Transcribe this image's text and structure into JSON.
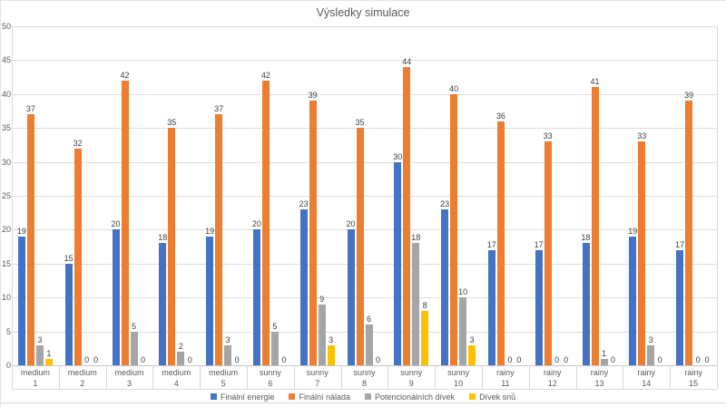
{
  "chart_data": {
    "type": "bar",
    "title": "Výsledky simulace",
    "categories": [
      {
        "weather": "medium",
        "number": "1"
      },
      {
        "weather": "medium",
        "number": "2"
      },
      {
        "weather": "medium",
        "number": "3"
      },
      {
        "weather": "medium",
        "number": "4"
      },
      {
        "weather": "medium",
        "number": "5"
      },
      {
        "weather": "sunny",
        "number": "6"
      },
      {
        "weather": "sunny",
        "number": "7"
      },
      {
        "weather": "sunny",
        "number": "8"
      },
      {
        "weather": "sunny",
        "number": "9"
      },
      {
        "weather": "sunny",
        "number": "10"
      },
      {
        "weather": "rainy",
        "number": "11"
      },
      {
        "weather": "rainy",
        "number": "12"
      },
      {
        "weather": "rainy",
        "number": "13"
      },
      {
        "weather": "rainy",
        "number": "14"
      },
      {
        "weather": "rainy",
        "number": "15"
      }
    ],
    "series": [
      {
        "name": "Finální energie",
        "color": "#4472C4",
        "values": [
          19,
          15,
          20,
          18,
          19,
          20,
          23,
          20,
          30,
          23,
          17,
          17,
          18,
          19,
          17
        ]
      },
      {
        "name": "Finální nálada",
        "color": "#ED7D31",
        "values": [
          37,
          32,
          42,
          35,
          37,
          42,
          39,
          35,
          44,
          40,
          36,
          33,
          41,
          33,
          39
        ]
      },
      {
        "name": "Potencionálních dívek",
        "color": "#A5A5A5",
        "values": [
          3,
          0,
          5,
          2,
          3,
          5,
          9,
          6,
          18,
          10,
          0,
          0,
          1,
          3,
          0
        ]
      },
      {
        "name": "Dívek snů",
        "color": "#FFC000",
        "values": [
          1,
          0,
          0,
          0,
          0,
          0,
          3,
          0,
          8,
          3,
          0,
          0,
          0,
          0,
          0
        ]
      }
    ],
    "y_axis": {
      "min": 0,
      "max": 50,
      "step": 5,
      "ticks": [
        0,
        5,
        10,
        15,
        20,
        25,
        30,
        35,
        40,
        45,
        50
      ]
    },
    "grid": true,
    "data_labels": true,
    "legend_position": "bottom",
    "colors": {
      "gridline": "#DEDEDE",
      "axis_line": "#C6C6C6",
      "table_border": "#D9D9D9",
      "axis_text": "#595959",
      "label_text": "#404040",
      "title_text": "#595959"
    }
  }
}
